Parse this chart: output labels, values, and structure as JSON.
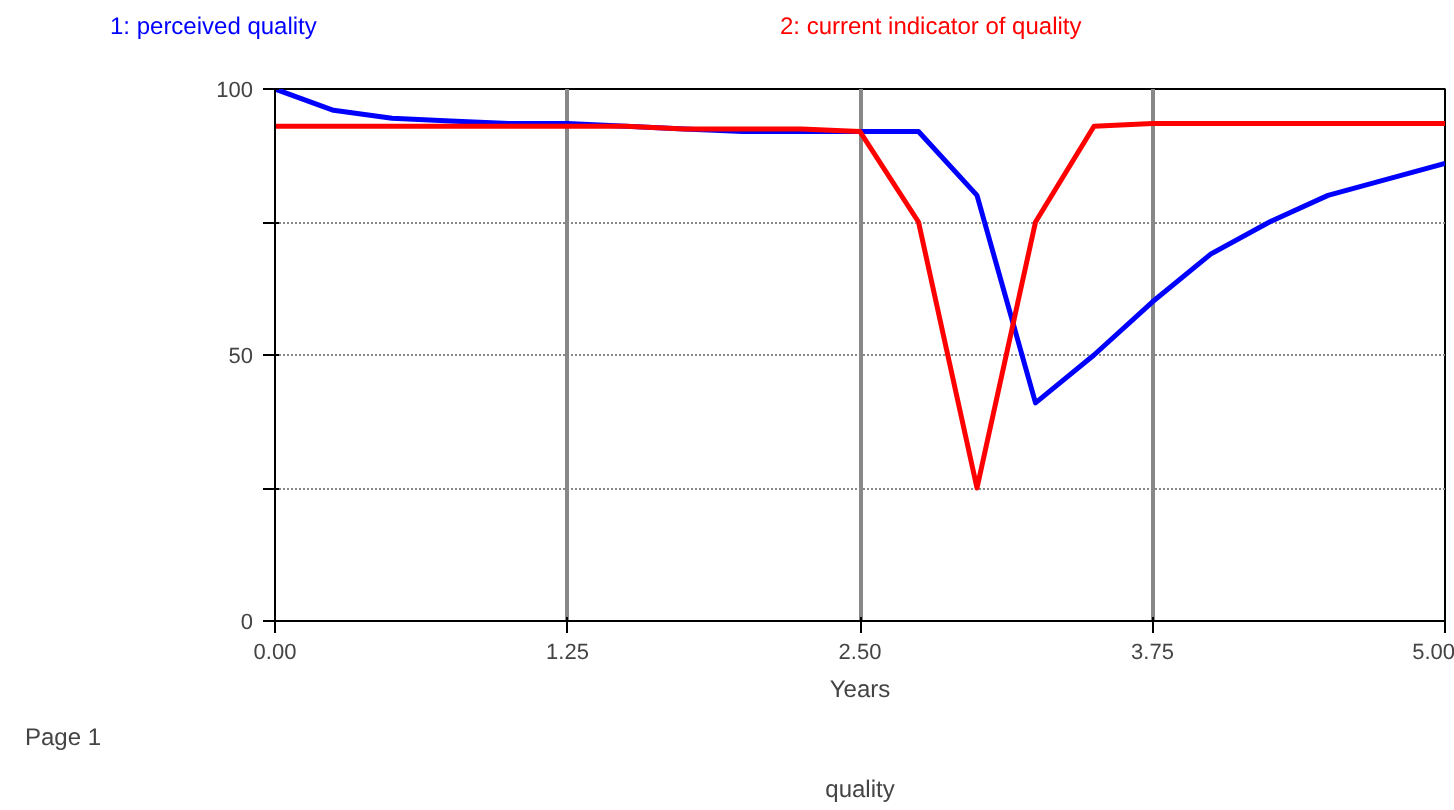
{
  "chart_data": {
    "type": "line",
    "title": "quality",
    "xlabel": "Years",
    "x": [
      0,
      0.25,
      0.5,
      0.75,
      1,
      1.25,
      1.5,
      1.75,
      2,
      2.25,
      2.5,
      2.75,
      3,
      3.25,
      3.5,
      3.75,
      4,
      4.25,
      4.5,
      4.75,
      5
    ],
    "series": [
      {
        "name": "1: perceived quality",
        "color": "#0000ff",
        "values": [
          100,
          96,
          94.5,
          94,
          93.5,
          93.5,
          93,
          92.5,
          92,
          92,
          92,
          92,
          80,
          41,
          50,
          60,
          69,
          75,
          80,
          83,
          86
        ]
      },
      {
        "name": "2: current indicator of quality",
        "color": "#ff0000",
        "values": [
          93,
          93,
          93,
          93,
          93,
          93,
          93,
          92.5,
          92.5,
          92.5,
          92,
          75,
          25,
          75,
          93,
          93.5,
          93.5,
          93.5,
          93.5,
          93.5,
          93.5
        ]
      }
    ],
    "xlim": [
      0,
      5
    ],
    "ylim": [
      0,
      100
    ],
    "xticks": [
      {
        "value": 0,
        "label": "0.00"
      },
      {
        "value": 1.25,
        "label": "1.25"
      },
      {
        "value": 2.5,
        "label": "2.50"
      },
      {
        "value": 3.75,
        "label": "3.75"
      },
      {
        "value": 5,
        "label": "5.00"
      }
    ],
    "yticks": [
      0,
      {
        "value": 25,
        "label": null
      },
      50,
      {
        "value": 75,
        "label": null
      },
      100
    ],
    "grid": true,
    "line_style": "solid",
    "marker": "none",
    "annotations": [
      "Page 1"
    ]
  }
}
